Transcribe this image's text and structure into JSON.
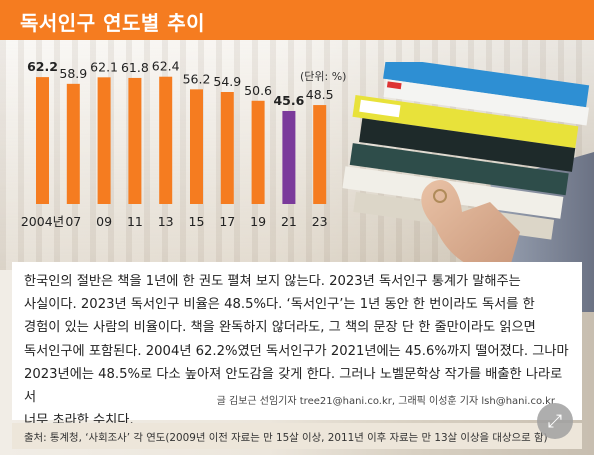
{
  "header": {
    "title": "독서인구 연도별 추이",
    "accent_color": "#f57c20"
  },
  "chart_data": {
    "type": "bar",
    "unit_label": "(단위: %)",
    "categories": [
      "2004년",
      "07",
      "09",
      "11",
      "13",
      "15",
      "17",
      "19",
      "21",
      "23"
    ],
    "values": [
      62.2,
      58.9,
      62.1,
      61.8,
      62.4,
      56.2,
      54.9,
      50.6,
      45.6,
      48.5
    ],
    "value_labels": [
      "62.2",
      "58.9",
      "62.1",
      "61.8",
      "62.4",
      "56.2",
      "54.9",
      "50.6",
      "45.6",
      "48.5"
    ],
    "bold_labels": [
      true,
      false,
      false,
      false,
      false,
      false,
      false,
      false,
      true,
      false
    ],
    "bar_color": "#f57c20",
    "highlight_index": 8,
    "highlight_color": "#7b3a9b",
    "ylim": [
      0,
      70
    ],
    "grid": false,
    "legend": "none"
  },
  "article": {
    "paragraph": "한국인의 절반은 책을 1년에 한 권도 펼쳐 보지 않는다. 2023년 독서인구 통계가 말해주는\n사실이다. 2023년 독서인구 비율은 48.5%다. ‘독서인구’는 1년 동안 한 번이라도 독서를 한\n경험이 있는 사람의 비율이다. 책을 완독하지 않더라도, 그 책의 문장 단 한 줄만이라도 읽으면\n독서인구에 포함된다. 2004년 62.2%였던 독서인구가 2021년에는 45.6%까지 떨어졌다. 그나마\n2023년에는 48.5%로 다소 높아져 안도감을 갖게 한다. 그러나 노벨문학상 작가를 배출한 나라로서\n너무 초라한 수치다.",
    "credit": "글 김보근 선임기자 tree21@hani.co.kr, 그래픽 이성훈 기자 lsh@hani.co.kr"
  },
  "source": {
    "text": "출처: 통계청, ‘사회조사’ 각 연도(2009년 이전 자료는 만 15살 이상, 2011년 이후 자료는 만 13살 이상을 대상으로 함)"
  },
  "expand_button": {
    "icon": "expand-arrows-icon",
    "glyph": "⤢"
  }
}
